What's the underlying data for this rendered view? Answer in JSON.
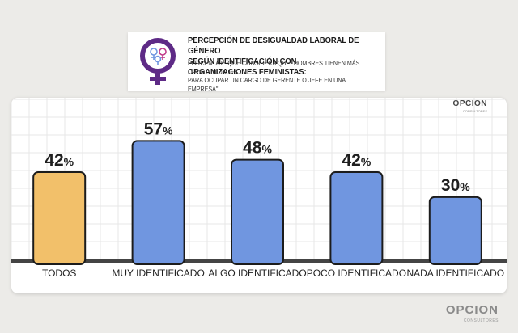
{
  "header": {
    "title": "PERCEPCIÓN DE DESIGUALDAD LABORAL DE GÉNERO\nSEGÚN IDENTIFICACIÓN CON ORGANIZACIONES FEMINISTAS:",
    "subtitle": "PORCENTAJE QUE CONSIDERA QUE \"HOMBRES TIENEN MÁS OPORTUNIDADES\nPARA OCUPAR UN CARGO DE GERENTE O JEFE EN UNA EMPRESA\".",
    "icon": "female-symbol-icon"
  },
  "brand": {
    "name": "OPCION",
    "sub": "CONSULTORES"
  },
  "colors": {
    "highlight_bar": "#f2c06a",
    "bar": "#7096e0",
    "icon_purple": "#5e2a86"
  },
  "chart_data": {
    "type": "bar",
    "categories": [
      "TODOS",
      "MUY IDENTIFICADO",
      "ALGO IDENTIFICADO",
      "POCO IDENTIFICADO",
      "NADA IDENTIFICADO"
    ],
    "values": [
      42,
      57,
      48,
      42,
      30
    ],
    "value_labels": [
      "42%",
      "57%",
      "48%",
      "42%",
      "30%"
    ],
    "value_suffix": "%",
    "highlight_index": 0,
    "ylim": [
      0,
      70
    ],
    "grid": true
  }
}
